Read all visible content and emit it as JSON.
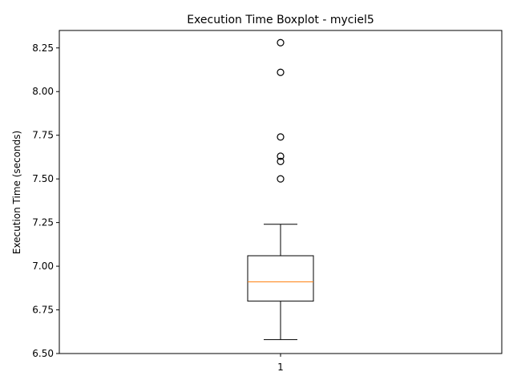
{
  "chart_data": {
    "type": "boxplot",
    "title": "Execution Time Boxplot - myciel5",
    "xlabel": "",
    "ylabel": "Execution Time (seconds)",
    "categories": [
      "1"
    ],
    "ylim": [
      6.5,
      8.35
    ],
    "yticks": [
      6.5,
      6.75,
      7.0,
      7.25,
      7.5,
      7.75,
      8.0,
      8.25
    ],
    "ytick_labels": [
      "6.50",
      "6.75",
      "7.00",
      "7.25",
      "7.50",
      "7.75",
      "8.00",
      "8.25"
    ],
    "grid": false,
    "boxes": [
      {
        "category": "1",
        "whisker_low": 6.58,
        "q1": 6.8,
        "median": 6.91,
        "q3": 7.06,
        "whisker_high": 7.24,
        "outliers": [
          7.5,
          7.6,
          7.63,
          7.74,
          8.11,
          8.28
        ]
      }
    ],
    "colors": {
      "box": "#000000",
      "median": "#ff7f0e",
      "outlier": "#000000"
    }
  }
}
